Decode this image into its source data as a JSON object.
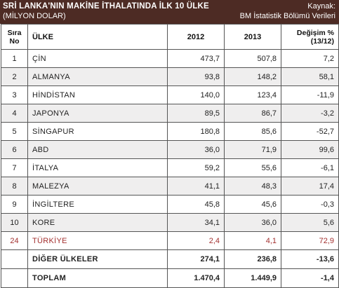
{
  "header": {
    "title_line1": "SRİ LANKA'NIN MAKİNE İTHALATINDA İLK 10 ÜLKE",
    "title_line2": "(MİLYON DOLAR)",
    "source_label": "Kaynak:",
    "source_name": "BM İstatistik Bölümü Verileri"
  },
  "columns": {
    "rank_line1": "Sıra",
    "rank_line2": "No",
    "country": "ÜLKE",
    "y2012": "2012",
    "y2013": "2013",
    "change_line1": "Değişim %",
    "change_line2": "(13/12)"
  },
  "rows": [
    {
      "rank": "1",
      "country": "ÇİN",
      "v2012": "473,7",
      "v2013": "507,8",
      "change": "7,2"
    },
    {
      "rank": "2",
      "country": "ALMANYA",
      "v2012": "93,8",
      "v2013": "148,2",
      "change": "58,1"
    },
    {
      "rank": "3",
      "country": "HİNDİSTAN",
      "v2012": "140,0",
      "v2013": "123,4",
      "change": "-11,9"
    },
    {
      "rank": "4",
      "country": "JAPONYA",
      "v2012": "89,5",
      "v2013": "86,7",
      "change": "-3,2"
    },
    {
      "rank": "5",
      "country": "SİNGAPUR",
      "v2012": "180,8",
      "v2013": "85,6",
      "change": "-52,7"
    },
    {
      "rank": "6",
      "country": "ABD",
      "v2012": "36,0",
      "v2013": "71,9",
      "change": "99,6"
    },
    {
      "rank": "7",
      "country": "İTALYA",
      "v2012": "59,2",
      "v2013": "55,6",
      "change": "-6,1"
    },
    {
      "rank": "8",
      "country": "MALEZYA",
      "v2012": "41,1",
      "v2013": "48,3",
      "change": "17,4"
    },
    {
      "rank": "9",
      "country": "İNGİLTERE",
      "v2012": "45,8",
      "v2013": "45,6",
      "change": "-0,3"
    },
    {
      "rank": "10",
      "country": "KORE",
      "v2012": "34,1",
      "v2013": "36,0",
      "change": "5,6"
    },
    {
      "rank": "24",
      "country": "TÜRKİYE",
      "v2012": "2,4",
      "v2013": "4,1",
      "change": "72,9"
    }
  ],
  "other": {
    "label": "DİĞER ÜLKELER",
    "v2012": "274,1",
    "v2013": "236,8",
    "change": "-13,6"
  },
  "total": {
    "label": "TOPLAM",
    "v2012": "1.470,4",
    "v2013": "1.449,9",
    "change": "-1,4"
  },
  "colors": {
    "header_bg": "#4d2b24",
    "highlight_text": "#a3302f",
    "stripe_bg": "#efeeee"
  }
}
